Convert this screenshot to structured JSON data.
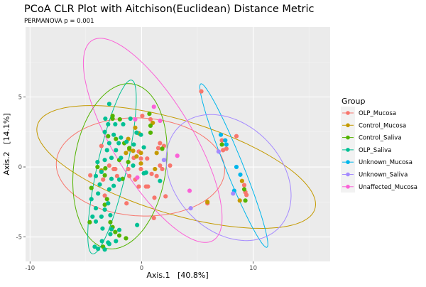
{
  "chart_data": {
    "type": "scatter",
    "title": "PCoA CLR Plot with Aitchison(Euclidean) Distance Metric",
    "subtitle": "PERMANOVA p = 0.001",
    "xlabel": "Axis.1   [40.8%]",
    "ylabel": "Axis.2   [14.1%]",
    "xlim": [
      -10.4,
      16.9
    ],
    "ylim": [
      -6.75,
      10.0
    ],
    "xticks": [
      -10,
      0,
      10
    ],
    "yticks": [
      -5,
      0,
      5
    ],
    "xtick_labels": [
      "-10",
      "0",
      "10"
    ],
    "ytick_labels": [
      "-5",
      "0",
      "5"
    ],
    "grid": true,
    "legend": {
      "title": "Group",
      "placement": "right"
    },
    "series": [
      {
        "name": "OLP_Mucosa",
        "color": "#F8766D",
        "ellipse": {
          "center": [
            -0.1,
            0
          ],
          "a": 7.55,
          "b": 3.5,
          "angle": -2
        },
        "points": [
          [
            0.06,
            3.65
          ],
          [
            0.8,
            3.4
          ],
          [
            1.65,
            1.7
          ],
          [
            2.0,
            1.5
          ],
          [
            1.5,
            1.35
          ],
          [
            -0.25,
            1.1
          ],
          [
            -0.06,
            0.6
          ],
          [
            0.5,
            0.6
          ],
          [
            1.65,
            0.1
          ],
          [
            1.85,
            -0.15
          ],
          [
            2.55,
            0.1
          ],
          [
            -0.06,
            -0.15
          ],
          [
            -1.2,
            -0.15
          ],
          [
            -2.5,
            -0.15
          ],
          [
            -3.6,
            1.5
          ],
          [
            -4.6,
            -0.6
          ],
          [
            -3.45,
            -0.9
          ],
          [
            -1.1,
            -0.65
          ],
          [
            -0.57,
            -0.9
          ],
          [
            0.9,
            -0.5
          ],
          [
            1.35,
            -0.65
          ],
          [
            -0.25,
            -1.4
          ],
          [
            0.4,
            -1.4
          ],
          [
            0.57,
            -1.4
          ],
          [
            2.15,
            -2.1
          ],
          [
            1.15,
            -2.2
          ],
          [
            -1.35,
            -2.6
          ],
          [
            -3.3,
            -2.05
          ],
          [
            1.1,
            -3.65
          ],
          [
            -2.2,
            -0.65
          ],
          [
            -2.9,
            0.1
          ],
          [
            -2.36,
            -0.15
          ],
          [
            -0.7,
            0.65
          ],
          [
            5.35,
            5.4
          ],
          [
            8.5,
            2.2
          ],
          [
            7.2,
            1.9
          ],
          [
            7.6,
            1.3
          ],
          [
            7.3,
            1.2
          ],
          [
            9.3,
            -1.8
          ],
          [
            9.2,
            -1.3
          ],
          [
            9.4,
            -2.0
          ],
          [
            5.9,
            -2.6
          ]
        ]
      },
      {
        "name": "Control_Mucosa",
        "color": "#C49A00",
        "ellipse": {
          "center": [
            3.1,
            0
          ],
          "a": 12.8,
          "b": 3.4,
          "angle": -13
        },
        "points": [
          [
            -0.57,
            2.8
          ],
          [
            1.0,
            3.15
          ],
          [
            -1.2,
            2.0
          ],
          [
            -1.1,
            1.25
          ],
          [
            -0.76,
            1.15
          ],
          [
            -0.06,
            1.0
          ],
          [
            -0.06,
            0.25
          ],
          [
            -0.45,
            0.75
          ],
          [
            1.35,
            1.0
          ],
          [
            1.2,
            -0.15
          ],
          [
            -3.6,
            -0.25
          ],
          [
            -0.25,
            2.4
          ],
          [
            -1.4,
            1.0
          ],
          [
            9.0,
            -1.0
          ],
          [
            8.8,
            -2.4
          ],
          [
            5.9,
            -2.5
          ]
        ]
      },
      {
        "name": "Control_Saliva",
        "color": "#53B400",
        "ellipse": {
          "center": [
            -1.94,
            0.05
          ],
          "a": 6.0,
          "b": 4.09,
          "angle": 76
        },
        "points": [
          [
            -2.6,
            3.65
          ],
          [
            -1.95,
            3.4
          ],
          [
            0.7,
            3.8
          ],
          [
            0.8,
            2.95
          ],
          [
            0.8,
            2.45
          ],
          [
            -3.0,
            2.2
          ],
          [
            -2.3,
            2.0
          ],
          [
            -1.55,
            1.7
          ],
          [
            1.85,
            1.3
          ],
          [
            -2.0,
            0.5
          ],
          [
            -1.2,
            0.35
          ],
          [
            -3.25,
            -0.1
          ],
          [
            -3.3,
            -0.6
          ],
          [
            -1.7,
            -0.85
          ],
          [
            -4.5,
            -1.5
          ],
          [
            -3.1,
            -2.3
          ],
          [
            -3.3,
            -2.7
          ],
          [
            -4.65,
            -3.95
          ],
          [
            -2.8,
            -3.95
          ],
          [
            -2.6,
            -4.3
          ],
          [
            -2.36,
            -4.65
          ],
          [
            -2.0,
            -4.9
          ],
          [
            -1.4,
            -5.1
          ],
          [
            -3.45,
            -5.7
          ],
          [
            -2.6,
            3.45
          ],
          [
            -1.1,
            1.35
          ],
          [
            -3.95,
            0
          ],
          [
            7.2,
            1.6
          ],
          [
            9.3,
            -2.4
          ],
          [
            9.2,
            -1.6
          ]
        ]
      },
      {
        "name": "OLP_Saliva",
        "color": "#00C094",
        "ellipse": {
          "center": [
            -2.65,
            0
          ],
          "a": 6.45,
          "b": 1.3,
          "angle": 74
        },
        "points": [
          [
            -2.9,
            4.5
          ],
          [
            -3.25,
            3.45
          ],
          [
            -2.36,
            3.05
          ],
          [
            -1.65,
            3.05
          ],
          [
            -1.0,
            3.45
          ],
          [
            -3.3,
            2.5
          ],
          [
            -2.5,
            2.3
          ],
          [
            -1.85,
            2.1
          ],
          [
            -0.7,
            1.6
          ],
          [
            -0.06,
            2.3
          ],
          [
            -2.9,
            1.7
          ],
          [
            -3.1,
            1.2
          ],
          [
            -2.3,
            1.2
          ],
          [
            0.2,
            1.4
          ],
          [
            -3.95,
            0.35
          ],
          [
            -3.3,
            0.5
          ],
          [
            -2.7,
            0.65
          ],
          [
            -1.85,
            0.65
          ],
          [
            -0.76,
            0.1
          ],
          [
            -4.1,
            -0.65
          ],
          [
            -2.7,
            -0.85
          ],
          [
            -2.0,
            -0.9
          ],
          [
            0.2,
            -0.45
          ],
          [
            0.4,
            -0.4
          ],
          [
            1.65,
            -1.0
          ],
          [
            -2.9,
            -1.6
          ],
          [
            -3.9,
            -1.9
          ],
          [
            -4.5,
            -2.3
          ],
          [
            -3.0,
            -2.6
          ],
          [
            -4.1,
            -2.95
          ],
          [
            -3.3,
            -3.05
          ],
          [
            -4.4,
            -3.55
          ],
          [
            -3.6,
            -3.55
          ],
          [
            -2.8,
            -3.45
          ],
          [
            -4.1,
            -3.9
          ],
          [
            -3.5,
            -4.4
          ],
          [
            -2.7,
            -4.45
          ],
          [
            -2.0,
            -4.5
          ],
          [
            -0.4,
            -4.15
          ],
          [
            -2.8,
            -4.8
          ],
          [
            -3.55,
            -5.3
          ],
          [
            -3.0,
            -5.4
          ],
          [
            -4.2,
            -5.7
          ],
          [
            -3.9,
            -5.85
          ],
          [
            -3.3,
            -5.9
          ],
          [
            -2.9,
            -5.5
          ],
          [
            -2.3,
            -5.3
          ],
          [
            -1.35,
            1.8
          ],
          [
            -2.05,
            1.7
          ],
          [
            -3.0,
            3.05
          ],
          [
            -0.45,
            2.45
          ],
          [
            -3.6,
            -0.35
          ],
          [
            -2.5,
            -1.35
          ],
          [
            -3.75,
            -1.25
          ]
        ]
      },
      {
        "name": "Unknown_Mucosa",
        "color": "#00B6EB",
        "ellipse": {
          "center": [
            8.27,
            0.1
          ],
          "a": 6.55,
          "b": 0.75,
          "angle": 117
        },
        "points": [
          [
            7.1,
            2.3
          ],
          [
            7.5,
            1.9
          ],
          [
            7.6,
            1.6
          ],
          [
            8.5,
            0
          ],
          [
            8.85,
            -0.55
          ],
          [
            8.3,
            -1.7
          ]
        ]
      },
      {
        "name": "Unknown_Saliva",
        "color": "#A58AFF",
        "ellipse": {
          "center": [
            7.8,
            -0.76
          ],
          "a": 5.9,
          "b": 4.1,
          "angle": -26
        },
        "points": [
          [
            6.9,
            1.1
          ],
          [
            8.2,
            -1.9
          ],
          [
            4.4,
            -2.95
          ],
          [
            2.0,
            0.5
          ]
        ]
      },
      {
        "name": "Unaffected_Mucosa",
        "color": "#FB61D7",
        "ellipse": {
          "center": [
            1.0,
            1.9
          ],
          "a": 9.0,
          "b": 3.3,
          "angle": 129
        },
        "points": [
          [
            1.1,
            4.3
          ],
          [
            1.66,
            3.3
          ],
          [
            3.2,
            0.8
          ],
          [
            4.3,
            -1.7
          ],
          [
            -0.57,
            3.4
          ],
          [
            -0.38,
            -0.76
          ]
        ]
      }
    ]
  }
}
